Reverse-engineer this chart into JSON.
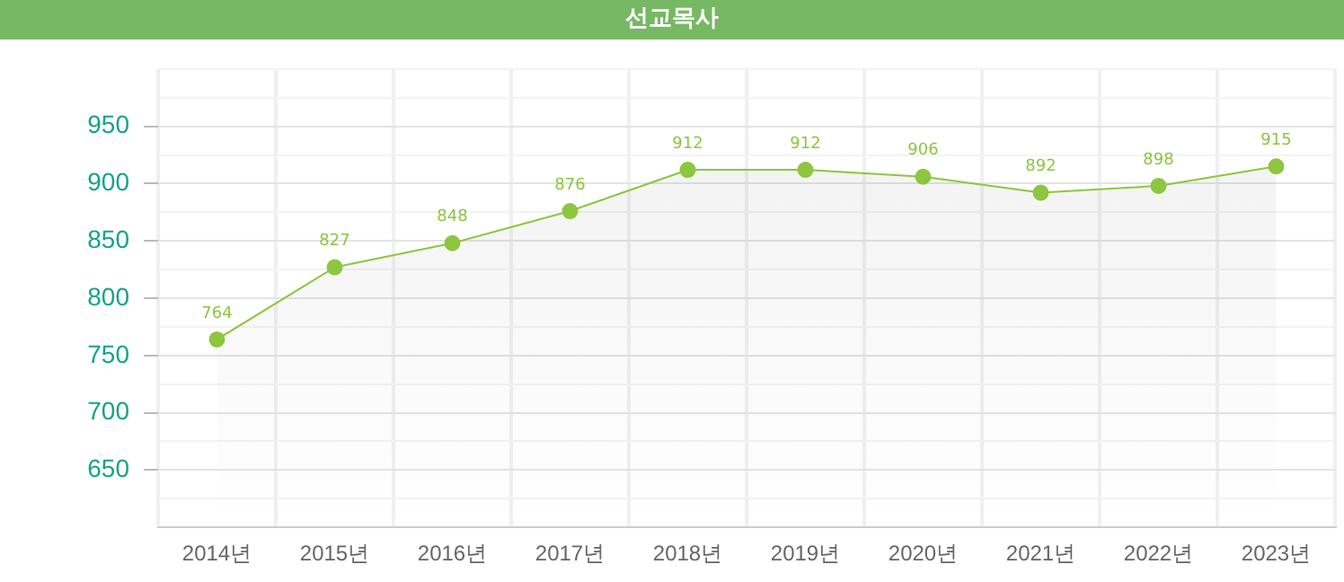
{
  "chart_data": {
    "type": "area",
    "title": "선교목사",
    "categories": [
      "2014년",
      "2015년",
      "2016년",
      "2017년",
      "2018년",
      "2019년",
      "2020년",
      "2021년",
      "2022년",
      "2023년"
    ],
    "series": [
      {
        "color": "#8dc63f",
        "values": [
          764,
          827,
          848,
          876,
          912,
          912,
          906,
          892,
          898,
          915
        ]
      }
    ],
    "ylim": [
      600,
      1000
    ],
    "yticks": [
      {
        "value": 600,
        "label": null
      },
      {
        "value": 625,
        "label": null
      },
      650,
      {
        "value": 675,
        "label": null
      },
      700,
      {
        "value": 725,
        "label": null
      },
      750,
      {
        "value": 775,
        "label": null
      },
      800,
      {
        "value": 825,
        "label": null
      },
      850,
      {
        "value": 875,
        "label": null
      },
      900,
      {
        "value": 925,
        "label": null
      },
      950,
      {
        "value": 975,
        "label": null
      },
      {
        "value": 1000,
        "label": null
      }
    ],
    "grid": true,
    "legend": false,
    "marker": "circle",
    "line_style": "solid",
    "data_labels": true
  }
}
